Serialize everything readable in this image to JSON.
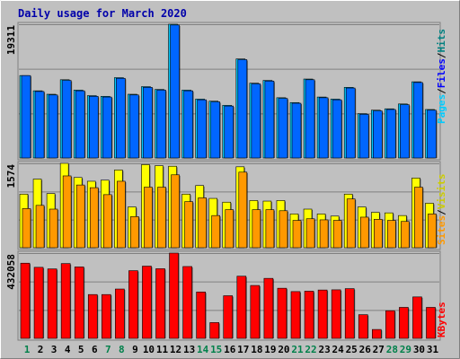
{
  "chart_data": {
    "type": "bar",
    "title": "Daily usage for March 2020",
    "days": [
      "1",
      "2",
      "3",
      "4",
      "5",
      "6",
      "7",
      "8",
      "9",
      "10",
      "11",
      "12",
      "13",
      "14",
      "15",
      "16",
      "17",
      "18",
      "19",
      "20",
      "21",
      "22",
      "23",
      "24",
      "25",
      "26",
      "27",
      "28",
      "29",
      "30",
      "31"
    ],
    "weekend_days": [
      "1",
      "7",
      "8",
      "14",
      "15",
      "21",
      "22",
      "28",
      "29"
    ],
    "panels": [
      {
        "id": "top",
        "max_label": "19311",
        "ylim": [
          0,
          19311
        ],
        "axis_labels": [
          "Pages",
          "/",
          "Files",
          "/",
          "Hits"
        ],
        "series": [
          {
            "name": "Hits",
            "color": "#00ccff",
            "values": [
              11900,
              9700,
              9200,
              11300,
              9800,
              9000,
              8900,
              11600,
              9200,
              10300,
              9900,
              19311,
              9800,
              8500,
              8200,
              7600,
              14300,
              10800,
              11200,
              8700,
              8000,
              11400,
              8800,
              8500,
              10200,
              6400,
              6900,
              7100,
              7800,
              11000,
              7000
            ]
          },
          {
            "name": "Files",
            "color": "#0066ff",
            "values": [
              11900,
              9600,
              9100,
              11200,
              9700,
              8900,
              8800,
              11500,
              9100,
              10200,
              9800,
              19200,
              9700,
              8400,
              8100,
              7500,
              14200,
              10700,
              11100,
              8600,
              7900,
              11300,
              8700,
              8400,
              10100,
              6300,
              6800,
              7000,
              7700,
              10900,
              6900
            ]
          },
          {
            "name": "Pages",
            "color": "#0000ff",
            "values": [
              0,
              0,
              0,
              0,
              0,
              0,
              0,
              0,
              0,
              0,
              0,
              0,
              0,
              0,
              0,
              0,
              0,
              0,
              0,
              0,
              0,
              0,
              0,
              0,
              0,
              0,
              0,
              0,
              0,
              0,
              0
            ]
          }
        ]
      },
      {
        "id": "middle",
        "max_label": "1574",
        "ylim": [
          0,
          1574
        ],
        "axis_labels": [
          "Sites",
          "/",
          "Visits"
        ],
        "series": [
          {
            "name": "Visits",
            "color": "#ffff00",
            "values": [
              1000,
              1280,
              1010,
              1574,
              1310,
              1240,
              1260,
              1450,
              760,
              1550,
              1530,
              1520,
              1000,
              1160,
              920,
              850,
              1510,
              880,
              870,
              880,
              630,
              720,
              630,
              590,
              1000,
              760,
              660,
              650,
              600,
              1300,
              830
            ]
          },
          {
            "name": "Sites",
            "color": "#ff9900",
            "values": [
              730,
              790,
              720,
              1340,
              1170,
              1120,
              990,
              1240,
              580,
              1130,
              1130,
              1360,
              860,
              930,
              600,
              710,
              1410,
              710,
              710,
              690,
              510,
              540,
              520,
              510,
              910,
              570,
              530,
              510,
              490,
              1130,
              630
            ]
          }
        ]
      },
      {
        "id": "bottom",
        "max_label": "432058",
        "ylim": [
          0,
          432058
        ],
        "axis_labels": [
          "KBytes"
        ],
        "series": [
          {
            "name": "KBytes",
            "color": "#ff0000",
            "values": [
              381000,
              360000,
              352000,
              379000,
              362000,
              222000,
              222000,
              250000,
              343000,
              366000,
              353000,
              432058,
              364000,
              235000,
              80000,
              216000,
              315000,
              268000,
              304000,
              254000,
              237000,
              239000,
              245000,
              246000,
              252000,
              120000,
              45000,
              140000,
              157000,
              210000,
              157000
            ]
          }
        ]
      }
    ]
  }
}
